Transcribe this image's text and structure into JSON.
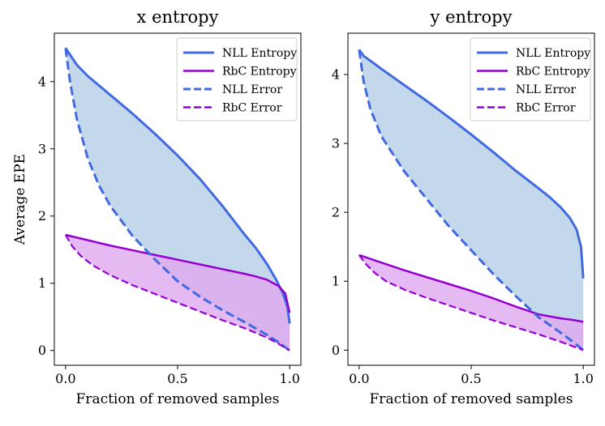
{
  "colors": {
    "nll": "#4169e1",
    "rbc": "#9400d3",
    "nll_fill": "#b4d0e6",
    "rbc_fill": "#dea8ef",
    "overlap_fill": "#9575d5"
  },
  "chart_data": [
    {
      "type": "line",
      "title": "x entropy",
      "xlabel": "Fraction of removed samples",
      "ylabel": "Average EPE",
      "xlim": [
        -0.05,
        1.05
      ],
      "ylim": [
        -0.22,
        4.72
      ],
      "xticks": [
        0.0,
        0.5,
        1.0
      ],
      "xtick_labels": [
        "0.0",
        "0.5",
        "1.0"
      ],
      "yticks": [
        0,
        1,
        2,
        3,
        4
      ],
      "ytick_labels": [
        "0",
        "1",
        "2",
        "3",
        "4"
      ],
      "legend_position": "top-right",
      "series": [
        {
          "name": "NLL Entropy",
          "color": "nll",
          "dash": "solid",
          "x": [
            0,
            0.05,
            0.1,
            0.2,
            0.3,
            0.4,
            0.5,
            0.6,
            0.7,
            0.8,
            0.85,
            0.9,
            0.94,
            0.97,
            0.99,
            1.0
          ],
          "y": [
            4.5,
            4.25,
            4.08,
            3.8,
            3.52,
            3.22,
            2.9,
            2.55,
            2.15,
            1.72,
            1.52,
            1.28,
            1.05,
            0.85,
            0.65,
            0.4
          ]
        },
        {
          "name": "RbC Entropy",
          "color": "rbc",
          "dash": "solid",
          "x": [
            0,
            0.1,
            0.2,
            0.3,
            0.4,
            0.5,
            0.6,
            0.7,
            0.8,
            0.85,
            0.9,
            0.95,
            0.98,
            1.0
          ],
          "y": [
            1.72,
            1.64,
            1.56,
            1.49,
            1.42,
            1.35,
            1.28,
            1.21,
            1.14,
            1.1,
            1.05,
            0.96,
            0.85,
            0.56
          ]
        },
        {
          "name": "NLL Error",
          "color": "nll",
          "dash": "dashed",
          "x": [
            0,
            0.02,
            0.05,
            0.1,
            0.15,
            0.2,
            0.3,
            0.4,
            0.5,
            0.6,
            0.7,
            0.8,
            0.9,
            0.95,
            1.0
          ],
          "y": [
            4.5,
            4.0,
            3.45,
            2.85,
            2.45,
            2.15,
            1.7,
            1.35,
            1.03,
            0.8,
            0.6,
            0.42,
            0.23,
            0.12,
            0.0
          ]
        },
        {
          "name": "RbC Error",
          "color": "rbc",
          "dash": "dashed",
          "x": [
            0,
            0.03,
            0.07,
            0.12,
            0.2,
            0.3,
            0.4,
            0.5,
            0.6,
            0.7,
            0.8,
            0.9,
            0.95,
            1.0
          ],
          "y": [
            1.72,
            1.55,
            1.4,
            1.27,
            1.12,
            0.97,
            0.84,
            0.71,
            0.58,
            0.45,
            0.33,
            0.19,
            0.1,
            0.0
          ]
        }
      ],
      "fills": [
        {
          "upper": "NLL Entropy",
          "lower": "NLL Error",
          "color": "nll_fill"
        },
        {
          "upper": "RbC Entropy",
          "lower": "RbC Error",
          "color": "rbc_fill"
        }
      ]
    },
    {
      "type": "line",
      "title": "y entropy",
      "xlabel": "Fraction of removed samples",
      "ylabel": "",
      "xlim": [
        -0.05,
        1.05
      ],
      "ylim": [
        -0.22,
        4.6
      ],
      "xticks": [
        0.0,
        0.5,
        1.0
      ],
      "xtick_labels": [
        "0.0",
        "0.5",
        "1.0"
      ],
      "yticks": [
        0,
        1,
        2,
        3,
        4
      ],
      "ytick_labels": [
        "0",
        "1",
        "2",
        "3",
        "4"
      ],
      "legend_position": "top-right",
      "series": [
        {
          "name": "NLL Entropy",
          "color": "nll",
          "dash": "solid",
          "x": [
            0,
            0.02,
            0.05,
            0.1,
            0.2,
            0.3,
            0.4,
            0.5,
            0.6,
            0.7,
            0.8,
            0.85,
            0.9,
            0.94,
            0.97,
            0.99,
            1.0
          ],
          "y": [
            4.36,
            4.27,
            4.2,
            4.08,
            3.85,
            3.62,
            3.38,
            3.13,
            2.87,
            2.6,
            2.35,
            2.22,
            2.07,
            1.92,
            1.75,
            1.5,
            1.04
          ]
        },
        {
          "name": "RbC Entropy",
          "color": "rbc",
          "dash": "solid",
          "x": [
            0,
            0.1,
            0.2,
            0.3,
            0.4,
            0.5,
            0.6,
            0.7,
            0.8,
            0.9,
            0.95,
            1.0
          ],
          "y": [
            1.38,
            1.27,
            1.16,
            1.06,
            0.96,
            0.86,
            0.75,
            0.63,
            0.52,
            0.46,
            0.44,
            0.41
          ]
        },
        {
          "name": "NLL Error",
          "color": "nll",
          "dash": "dashed",
          "x": [
            0,
            0.02,
            0.05,
            0.1,
            0.15,
            0.2,
            0.3,
            0.4,
            0.5,
            0.6,
            0.7,
            0.8,
            0.9,
            0.95,
            1.0
          ],
          "y": [
            4.36,
            3.9,
            3.5,
            3.1,
            2.85,
            2.6,
            2.2,
            1.8,
            1.45,
            1.1,
            0.78,
            0.48,
            0.25,
            0.13,
            0.0
          ]
        },
        {
          "name": "RbC Error",
          "color": "rbc",
          "dash": "dashed",
          "x": [
            0,
            0.03,
            0.07,
            0.12,
            0.2,
            0.3,
            0.4,
            0.5,
            0.6,
            0.7,
            0.8,
            0.9,
            0.95,
            1.0
          ],
          "y": [
            1.38,
            1.25,
            1.12,
            1.0,
            0.88,
            0.76,
            0.65,
            0.54,
            0.43,
            0.33,
            0.23,
            0.12,
            0.06,
            0.0
          ]
        }
      ],
      "fills": [
        {
          "upper": "NLL Entropy",
          "lower": "NLL Error",
          "color": "nll_fill"
        },
        {
          "upper": "RbC Entropy",
          "lower": "RbC Error",
          "color": "rbc_fill"
        }
      ]
    }
  ]
}
